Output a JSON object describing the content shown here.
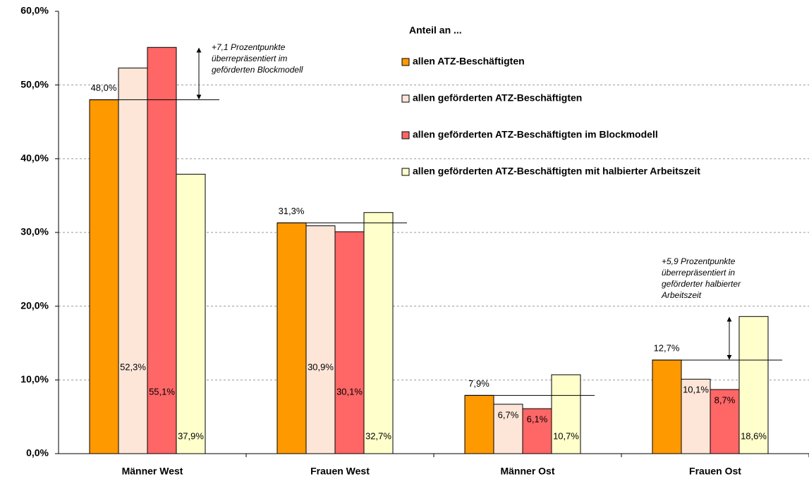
{
  "chart_data": {
    "type": "bar",
    "legend_title": "Anteil an ...",
    "categories": [
      "Männer West",
      "Frauen West",
      "Männer Ost",
      "Frauen Ost"
    ],
    "series": [
      {
        "name": "allen ATZ-Beschäftigten",
        "color": "#ff9900",
        "values": [
          48.0,
          31.3,
          7.9,
          12.7
        ],
        "value_labels": [
          "48,0%",
          "31,3%",
          "7,9%",
          "12,7%"
        ]
      },
      {
        "name": "allen geförderten ATZ-Beschäftigten",
        "color": "#fde6d8",
        "values": [
          52.3,
          30.9,
          6.7,
          10.1
        ],
        "value_labels": [
          "52,3%",
          "30,9%",
          "6,7%",
          "10,1%"
        ]
      },
      {
        "name": "allen geförderten ATZ-Beschäftigten im Blockmodell",
        "color": "#ff6666",
        "values": [
          55.1,
          30.1,
          6.1,
          8.7
        ],
        "value_labels": [
          "55,1%",
          "30,1%",
          "6,1%",
          "8,7%"
        ]
      },
      {
        "name": "allen geförderten ATZ-Beschäftigten mit halbierter Arbeitszeit",
        "color": "#ffffcc",
        "values": [
          37.9,
          32.7,
          10.7,
          18.6
        ],
        "value_labels": [
          "37,9%",
          "32,7%",
          "10,7%",
          "18,6%"
        ]
      }
    ],
    "ylim": [
      0,
      60
    ],
    "yticks": [
      {
        "value": 0,
        "label": "0,0%"
      },
      {
        "value": 10,
        "label": "10,0%"
      },
      {
        "value": 20,
        "label": "20,0%"
      },
      {
        "value": 30,
        "label": "30,0%"
      },
      {
        "value": 40,
        "label": "40,0%"
      },
      {
        "value": 50,
        "label": "50,0%"
      },
      {
        "value": 60,
        "label": "60,0%"
      }
    ],
    "grid": true,
    "annotations": [
      {
        "lines": [
          "+7,1 Prozentpunkte",
          "überrepräsentiert im",
          "geförderten Blockmodell"
        ]
      },
      {
        "lines": [
          "+5,9 Prozentpunkte",
          "überrepräsentiert in",
          "geförderter halbierter",
          "Arbeitszeit"
        ]
      }
    ]
  }
}
